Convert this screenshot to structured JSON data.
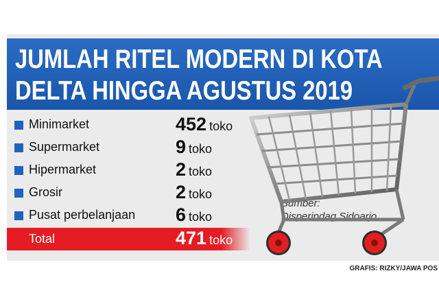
{
  "title": {
    "line1": "JUMLAH RITEL MODERN DI KOTA",
    "line2": "DELTA HINGGA AGUSTUS 2019"
  },
  "chart_data": {
    "type": "table",
    "title": "JUMLAH RITEL MODERN DI KOTA DELTA HINGGA AGUSTUS 2019",
    "unit": "toko",
    "rows": [
      {
        "category": "Minimarket",
        "value": 452
      },
      {
        "category": "Supermarket",
        "value": 9
      },
      {
        "category": "Hipermarket",
        "value": 2
      },
      {
        "category": "Grosir",
        "value": 2
      },
      {
        "category": "Pusat perbelanjaan",
        "value": 6
      }
    ],
    "total": {
      "label": "Total",
      "value": 471
    }
  },
  "source": {
    "label": "Sumber:",
    "text": "Disperindag Sidoarjo"
  },
  "credit": "GRAFIS: RIZKY/JAWA POS",
  "colors": {
    "header_blue": "#1f63bb",
    "total_red": "#e51c23",
    "panel_gray": "#ebebeb",
    "cart_wheel_red": "#e02020"
  },
  "icons": [
    "shopping-cart-icon"
  ]
}
